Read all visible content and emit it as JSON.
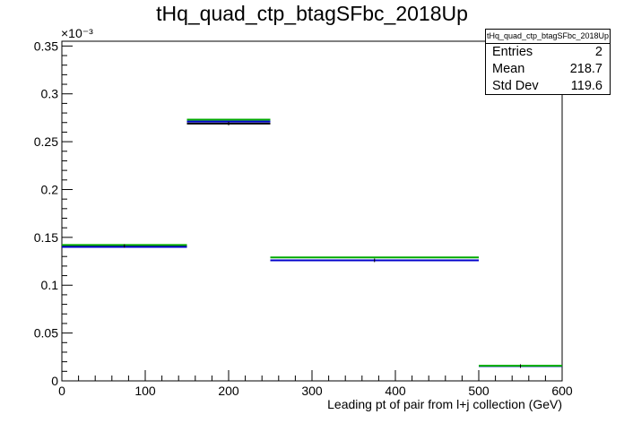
{
  "chart_data": {
    "type": "histogram",
    "title": "tHq_quad_ctp_btagSFbc_2018Up",
    "xlabel": "Leading pt of pair from l+j collection (GeV)",
    "ylabel": "",
    "xlim": [
      0,
      600
    ],
    "ylim": [
      0,
      0.000355
    ],
    "y_exponent_label": "×10⁻³",
    "x_ticks": [
      "0",
      "100",
      "200",
      "300",
      "400",
      "500",
      "600"
    ],
    "y_ticks": [
      "0",
      "0.05",
      "0.1",
      "0.15",
      "0.2",
      "0.25",
      "0.3",
      "0.35"
    ],
    "y_tick_values": [
      0,
      0.05,
      0.1,
      0.15,
      0.2,
      0.25,
      0.3,
      0.35
    ],
    "bin_edges": [
      0,
      150,
      250,
      500,
      600
    ],
    "series": [
      {
        "color": "#000000",
        "values": [
          0.000141,
          0.000269,
          0.000126,
          1.55e-05
        ]
      },
      {
        "color": "#0000cc",
        "values": [
          0.00014,
          0.000271,
          0.000126,
          1.55e-05
        ]
      },
      {
        "color": "#00aa00",
        "values": [
          0.000142,
          0.000273,
          0.000129,
          1.58e-05
        ]
      }
    ],
    "stats": {
      "title": "tHq_quad_ctp_btagSFbc_2018Up",
      "entries_label": "Entries",
      "entries": "2",
      "mean_label": "Mean",
      "mean": "218.7",
      "stddev_label": "Std Dev",
      "stddev": "119.6"
    },
    "grid": false,
    "legend": "stats box top-right"
  }
}
